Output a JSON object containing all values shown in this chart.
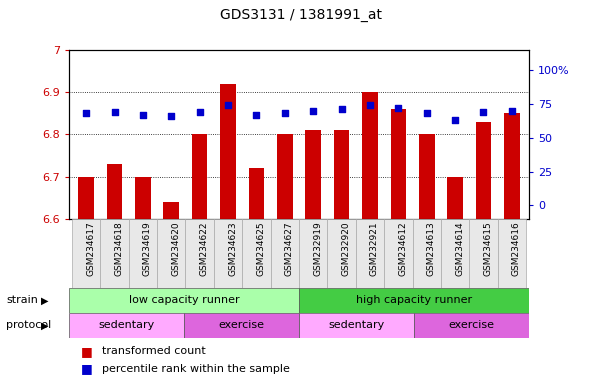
{
  "title": "GDS3131 / 1381991_at",
  "samples": [
    "GSM234617",
    "GSM234618",
    "GSM234619",
    "GSM234620",
    "GSM234622",
    "GSM234623",
    "GSM234625",
    "GSM234627",
    "GSM232919",
    "GSM232920",
    "GSM232921",
    "GSM234612",
    "GSM234613",
    "GSM234614",
    "GSM234615",
    "GSM234616"
  ],
  "bar_values": [
    6.7,
    6.73,
    6.7,
    6.64,
    6.8,
    6.92,
    6.72,
    6.8,
    6.81,
    6.81,
    6.9,
    6.86,
    6.8,
    6.7,
    6.83,
    6.85
  ],
  "percentile_values": [
    68,
    69,
    67,
    66,
    69,
    74,
    67,
    68,
    70,
    71,
    74,
    72,
    68,
    63,
    69,
    70
  ],
  "ymin": 6.6,
  "ymax": 7.0,
  "yticks": [
    6.6,
    6.7,
    6.8,
    6.9,
    7.0
  ],
  "bar_color": "#cc0000",
  "percentile_color": "#0000cc",
  "strain_groups": [
    {
      "label": "low capacity runner",
      "start": 0,
      "end": 8,
      "color": "#aaffaa"
    },
    {
      "label": "high capacity runner",
      "start": 8,
      "end": 16,
      "color": "#44cc44"
    }
  ],
  "protocol_groups": [
    {
      "label": "sedentary",
      "start": 0,
      "end": 4,
      "color": "#ffaaff"
    },
    {
      "label": "exercise",
      "start": 4,
      "end": 8,
      "color": "#dd66dd"
    },
    {
      "label": "sedentary",
      "start": 8,
      "end": 12,
      "color": "#ffaaff"
    },
    {
      "label": "exercise",
      "start": 12,
      "end": 16,
      "color": "#dd66dd"
    }
  ],
  "right_yticks": [
    0,
    25,
    50,
    75,
    100
  ],
  "strain_label": "strain",
  "protocol_label": "protocol",
  "legend": [
    {
      "label": "transformed count",
      "color": "#cc0000"
    },
    {
      "label": "percentile rank within the sample",
      "color": "#0000cc"
    }
  ]
}
